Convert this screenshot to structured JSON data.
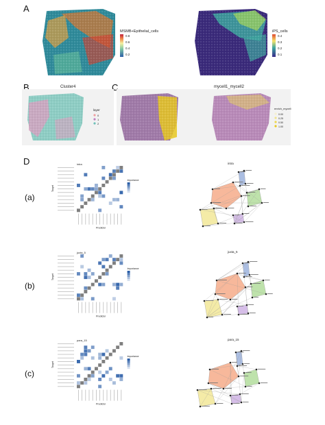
{
  "panels": {
    "A": {
      "letter": "A",
      "left_legend": {
        "title": "MSMB+Epithelial_cells",
        "ticks": [
          "0.8",
          "0.6",
          "0.4",
          "0.2"
        ]
      },
      "right_legend": {
        "title": "iPS_cells",
        "ticks": [
          "0.4",
          "0.3",
          "0.2",
          "0.1"
        ]
      }
    },
    "B": {
      "letter": "B",
      "title": "Cluster4",
      "legend_title": "layer",
      "legend_items": [
        "0",
        "1",
        "2"
      ]
    },
    "C": {
      "letter": "C",
      "title": "mycell1_mycell2",
      "legend_title": "enrich_mycell",
      "legend_ticks": [
        "0.00",
        "0.25",
        "0.50",
        "1.00"
      ]
    },
    "D": {
      "letter": "D",
      "rows": [
        {
          "label": "(a)",
          "network_title": "intra",
          "heatmap_title": "intra",
          "xlabel": "Predictor",
          "ylabel": "Target",
          "legend_title": "Importance"
        },
        {
          "label": "(b)",
          "network_title": "juxta_5",
          "heatmap_title": "juxta_5",
          "xlabel": "Predictor",
          "ylabel": "Target",
          "legend_title": "Importance"
        },
        {
          "label": "(c)",
          "network_title": "para_15",
          "heatmap_title": "para_15",
          "xlabel": "Predictor",
          "ylabel": "Target",
          "legend_title": "Importance"
        }
      ]
    }
  },
  "colors": {
    "heat_low": "#ffffff",
    "heat_high": "#2c5fa8",
    "diag": "#7f7f7f",
    "hull_orange": "#f4a07a",
    "hull_blue": "#8fa8d8",
    "hull_green": "#a8d88f",
    "hull_yellow": "#f0e48a",
    "hull_purple": "#c8a8e0"
  }
}
